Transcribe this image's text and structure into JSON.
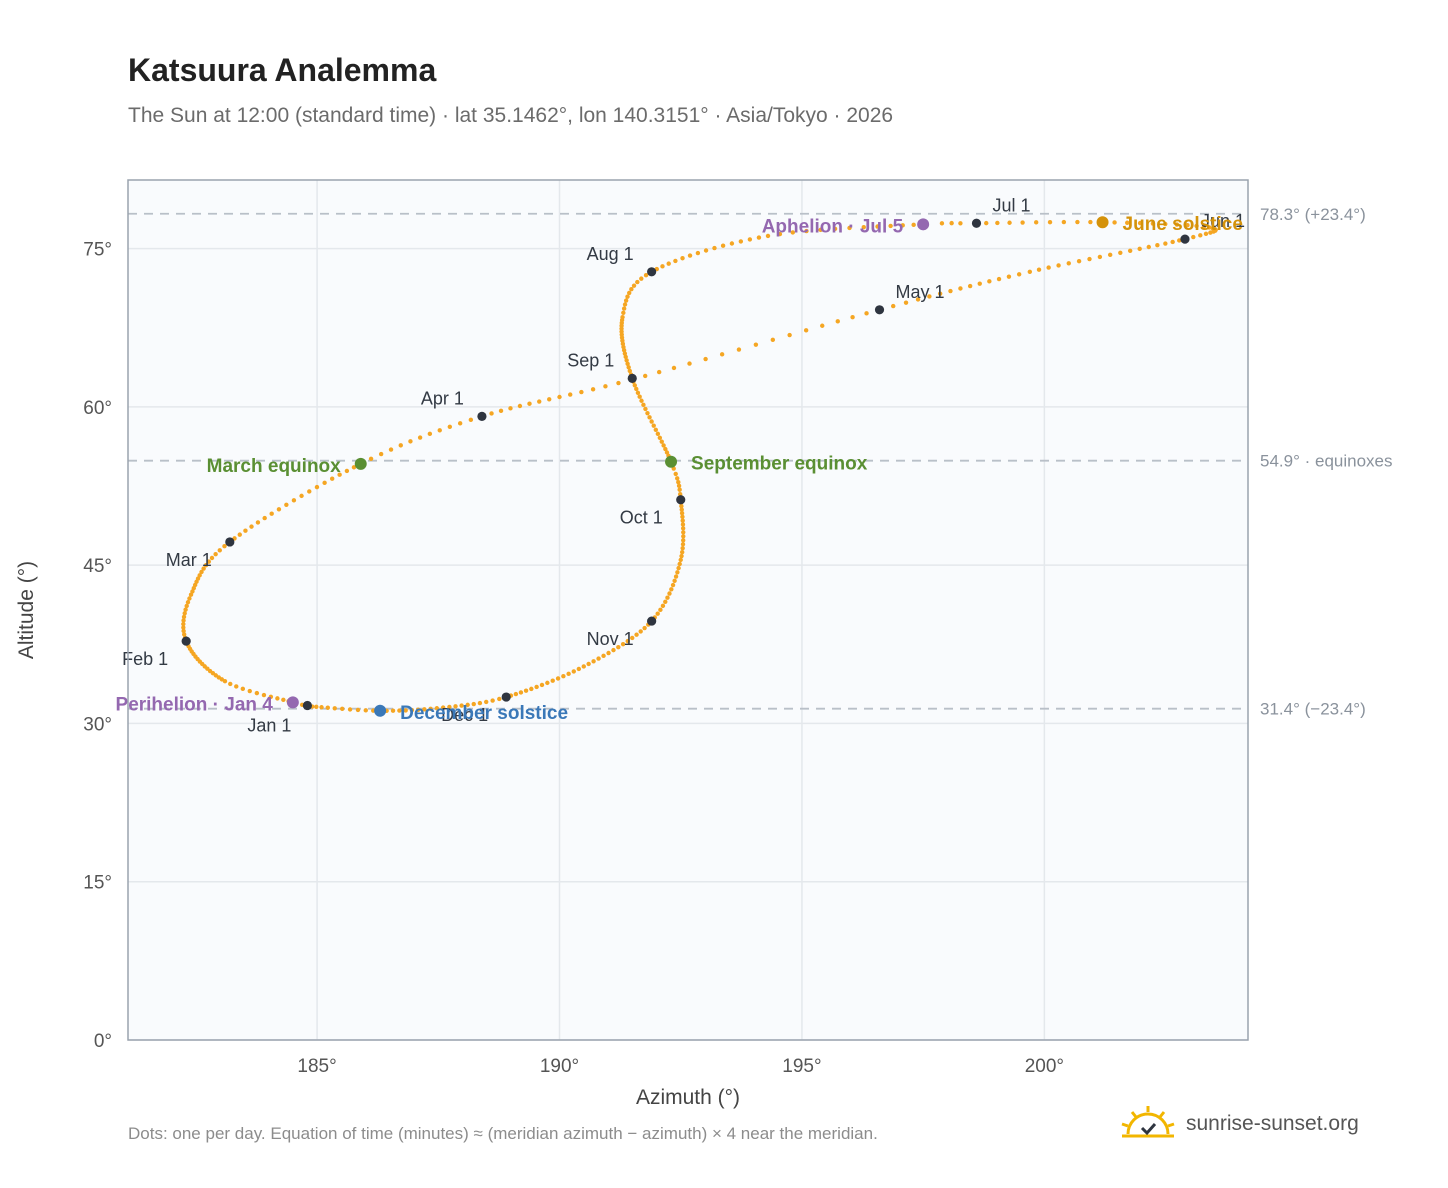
{
  "header": {
    "title": "Katsuura Analemma",
    "subtitle": "The Sun at 12:00 (standard time) · lat 35.1462°, lon 140.3151° · Asia/Tokyo · 2026"
  },
  "footer": {
    "note": "Dots: one per day. Equation of time (minutes) ≈ (meridian azimuth − azimuth) × 4 near the meridian.",
    "brand": "sunrise-sunset.org"
  },
  "colors": {
    "curve": "#f5a623",
    "month_dot": "#2f3540",
    "equinox": "#5a8f33",
    "june_solstice": "#d4920a",
    "december_solstice": "#3a78b8",
    "apsis": "#9468b0",
    "reference_line": "#b9c0c8",
    "plot_bg": "#f9fbfd",
    "plot_border": "#9aa3ae",
    "grid": "#e4e8ec"
  },
  "chart_data": {
    "type": "scatter",
    "xlabel": "Azimuth (°)",
    "ylabel": "Altitude (°)",
    "xlim": [
      181.1,
      204.2
    ],
    "ylim": [
      0,
      81.5
    ],
    "xticks": [
      185,
      190,
      195,
      200
    ],
    "yticks": [
      0,
      15,
      30,
      45,
      60,
      75
    ],
    "x_tick_labels": [
      "185°",
      "190°",
      "195°",
      "200°"
    ],
    "y_tick_labels": [
      "0°",
      "15°",
      "30°",
      "45°",
      "60°",
      "75°"
    ],
    "grid": true,
    "reference_lines": [
      {
        "y": 78.3,
        "label": "78.3° (+23.4°)"
      },
      {
        "y": 54.9,
        "label": "54.9° · equinoxes"
      },
      {
        "y": 31.4,
        "label": "31.4° (−23.4°)"
      }
    ],
    "curve_anchors": [
      {
        "doy": 1,
        "x": 184.8,
        "y": 31.7
      },
      {
        "doy": 4,
        "x": 184.5,
        "y": 32.0
      },
      {
        "doy": 15,
        "x": 183.1,
        "y": 34.0
      },
      {
        "doy": 32,
        "x": 182.3,
        "y": 37.8
      },
      {
        "doy": 45,
        "x": 182.4,
        "y": 42.2
      },
      {
        "doy": 60,
        "x": 183.2,
        "y": 47.2
      },
      {
        "doy": 79,
        "x": 185.9,
        "y": 54.6
      },
      {
        "doy": 91,
        "x": 188.4,
        "y": 59.1
      },
      {
        "doy": 105,
        "x": 191.5,
        "y": 62.6
      },
      {
        "doy": 121,
        "x": 196.6,
        "y": 69.2
      },
      {
        "doy": 135,
        "x": 199.7,
        "y": 72.8
      },
      {
        "doy": 152,
        "x": 202.9,
        "y": 75.9
      },
      {
        "doy": 162,
        "x": 203.4,
        "y": 77.0
      },
      {
        "doy": 172,
        "x": 201.2,
        "y": 77.5
      },
      {
        "doy": 182,
        "x": 198.6,
        "y": 77.4
      },
      {
        "doy": 186,
        "x": 197.5,
        "y": 77.3
      },
      {
        "doy": 198,
        "x": 194.3,
        "y": 76.2
      },
      {
        "doy": 213,
        "x": 191.9,
        "y": 72.8
      },
      {
        "doy": 225,
        "x": 191.3,
        "y": 68.5
      },
      {
        "doy": 244,
        "x": 191.5,
        "y": 62.7
      },
      {
        "doy": 266,
        "x": 192.3,
        "y": 54.8
      },
      {
        "doy": 274,
        "x": 192.5,
        "y": 51.2
      },
      {
        "doy": 290,
        "x": 192.5,
        "y": 45.5
      },
      {
        "doy": 305,
        "x": 191.9,
        "y": 39.7
      },
      {
        "doy": 320,
        "x": 190.5,
        "y": 35.4
      },
      {
        "doy": 335,
        "x": 188.9,
        "y": 32.5
      },
      {
        "doy": 345,
        "x": 187.6,
        "y": 31.5
      },
      {
        "doy": 355,
        "x": 186.3,
        "y": 31.2
      },
      {
        "doy": 365,
        "x": 184.9,
        "y": 31.6
      }
    ],
    "month_markers": [
      {
        "label": "Jan 1",
        "x": 184.8,
        "y": 31.7,
        "anchor": "end",
        "dx": -16,
        "dy": 26
      },
      {
        "label": "Feb 1",
        "x": 182.3,
        "y": 37.8,
        "anchor": "end",
        "dx": -18,
        "dy": 24
      },
      {
        "label": "Mar 1",
        "x": 183.2,
        "y": 47.2,
        "anchor": "end",
        "dx": -18,
        "dy": 24
      },
      {
        "label": "Apr 1",
        "x": 188.4,
        "y": 59.1,
        "anchor": "end",
        "dx": -18,
        "dy": -12
      },
      {
        "label": "May 1",
        "x": 196.6,
        "y": 69.2,
        "anchor": "start",
        "dx": 16,
        "dy": -12
      },
      {
        "label": "Jun 1",
        "x": 202.9,
        "y": 75.9,
        "anchor": "start",
        "dx": 16,
        "dy": -12
      },
      {
        "label": "Jul 1",
        "x": 198.6,
        "y": 77.4,
        "anchor": "start",
        "dx": 16,
        "dy": -12
      },
      {
        "label": "Aug 1",
        "x": 191.9,
        "y": 72.8,
        "anchor": "end",
        "dx": -18,
        "dy": -12
      },
      {
        "label": "Sep 1",
        "x": 191.5,
        "y": 62.7,
        "anchor": "end",
        "dx": -18,
        "dy": -12
      },
      {
        "label": "Oct 1",
        "x": 192.5,
        "y": 51.2,
        "anchor": "end",
        "dx": -18,
        "dy": 24
      },
      {
        "label": "Nov 1",
        "x": 191.9,
        "y": 39.7,
        "anchor": "end",
        "dx": -18,
        "dy": 24
      },
      {
        "label": "Dec 1",
        "x": 188.9,
        "y": 32.5,
        "anchor": "end",
        "dx": -18,
        "dy": 24
      }
    ],
    "events": [
      {
        "label": "March equinox",
        "x": 185.9,
        "y": 54.6,
        "kind": "equinox",
        "anchor": "end",
        "dx": -20,
        "dy": 8
      },
      {
        "label": "September equinox",
        "x": 192.3,
        "y": 54.8,
        "kind": "equinox",
        "anchor": "start",
        "dx": 20,
        "dy": 8
      },
      {
        "label": "June solstice",
        "x": 201.2,
        "y": 77.5,
        "kind": "june",
        "anchor": "start",
        "dx": 20,
        "dy": 8
      },
      {
        "label": "December solstice",
        "x": 186.3,
        "y": 31.2,
        "kind": "december",
        "anchor": "start",
        "dx": 20,
        "dy": 8
      },
      {
        "label": "Aphelion · Jul 5",
        "x": 197.5,
        "y": 77.3,
        "kind": "apsis",
        "anchor": "end",
        "dx": -20,
        "dy": 8
      },
      {
        "label": "Perihelion · Jan 4",
        "x": 184.5,
        "y": 32.0,
        "kind": "apsis",
        "anchor": "end",
        "dx": -20,
        "dy": 8
      }
    ]
  }
}
